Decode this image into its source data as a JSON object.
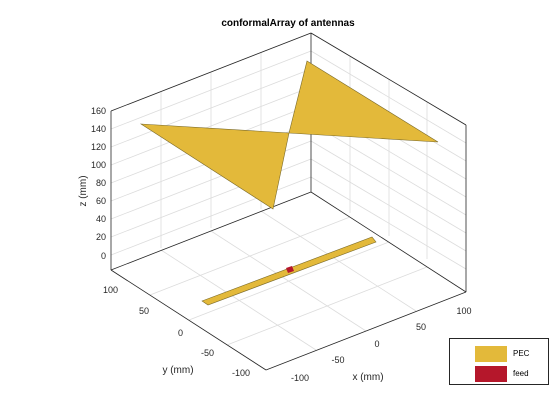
{
  "title": "conformalArray of antennas",
  "axes": {
    "xlabel": "x (mm)",
    "ylabel": "y (mm)",
    "zlabel": "z (mm)",
    "x_ticks": [
      "-100",
      "-50",
      "0",
      "50",
      "100"
    ],
    "y_ticks": [
      "100",
      "50",
      "0",
      "-50",
      "-100"
    ],
    "z_ticks": [
      "160",
      "140",
      "120",
      "100",
      "80",
      "60",
      "40",
      "20",
      "0"
    ]
  },
  "legend": {
    "items": [
      {
        "label": "PEC",
        "color": "#e3b93a"
      },
      {
        "label": "feed",
        "color": "#b5172b"
      }
    ]
  },
  "colors": {
    "metal": "#e3b93a",
    "metal_edge": "#7a6a2a",
    "feed": "#b5172b",
    "grid": "#dcdcdc",
    "axis": "#262626"
  }
}
